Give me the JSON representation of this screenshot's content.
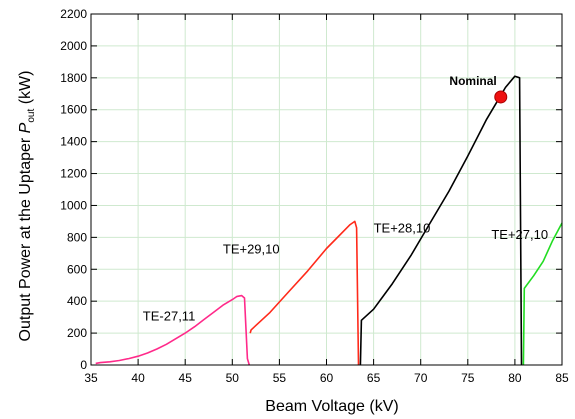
{
  "chart_data": {
    "type": "line",
    "xlabel": "Beam Voltage  (kV)",
    "ylabel_main": "Output Power at the Uptaper ",
    "ylabel_symbol": "P",
    "ylabel_subscript": "out",
    "ylabel_unit": " (kW)",
    "xlim": [
      35,
      85
    ],
    "ylim": [
      0,
      2200
    ],
    "xticks": [
      35,
      40,
      45,
      50,
      55,
      60,
      65,
      70,
      75,
      80,
      85
    ],
    "yticks": [
      0,
      200,
      400,
      600,
      800,
      1000,
      1200,
      1400,
      1600,
      1800,
      2000,
      2200
    ],
    "grid": true,
    "series": [
      {
        "name": "TE-27,11",
        "color": "#ff2a8a",
        "x": [
          35.5,
          36,
          37,
          38,
          39,
          40,
          41,
          42,
          43,
          44,
          45,
          46,
          47,
          48,
          49,
          50,
          50.5,
          51,
          51.3,
          51.6,
          51.8
        ],
        "y": [
          10,
          15,
          20,
          28,
          40,
          55,
          75,
          100,
          130,
          165,
          200,
          240,
          285,
          330,
          375,
          410,
          430,
          435,
          420,
          40,
          0
        ]
      },
      {
        "name": "TE+29,10",
        "color": "#ff2a1a",
        "x": [
          51.9,
          52,
          54,
          56,
          58,
          60,
          61,
          62,
          62.5,
          63,
          63.2,
          63.4
        ],
        "y": [
          200,
          220,
          330,
          460,
          590,
          730,
          790,
          850,
          880,
          900,
          860,
          0
        ]
      },
      {
        "name": "TE+28,10",
        "color": "#000000",
        "x": [
          63.6,
          63.7,
          65,
          67,
          69,
          71,
          73,
          75,
          77,
          78,
          79,
          80,
          80.5,
          80.7
        ],
        "y": [
          0,
          280,
          350,
          510,
          690,
          890,
          1090,
          1310,
          1540,
          1640,
          1740,
          1810,
          1800,
          0
        ]
      },
      {
        "name": "TE+27,10",
        "color": "#22dd22",
        "x": [
          80.9,
          81,
          82,
          83,
          84,
          85
        ],
        "y": [
          0,
          480,
          560,
          650,
          780,
          890
        ]
      }
    ],
    "labels": [
      {
        "text": "TE-27,11",
        "x": 40.5,
        "y": 280
      },
      {
        "text": "TE+29,10",
        "x": 49,
        "y": 700
      },
      {
        "text": "TE+28,10",
        "x": 65,
        "y": 830
      },
      {
        "text": "TE+27,10",
        "x": 77.5,
        "y": 790
      }
    ],
    "marker": {
      "label": "Nominal",
      "x": 78.5,
      "y": 1680,
      "color": "#ee1111"
    }
  }
}
